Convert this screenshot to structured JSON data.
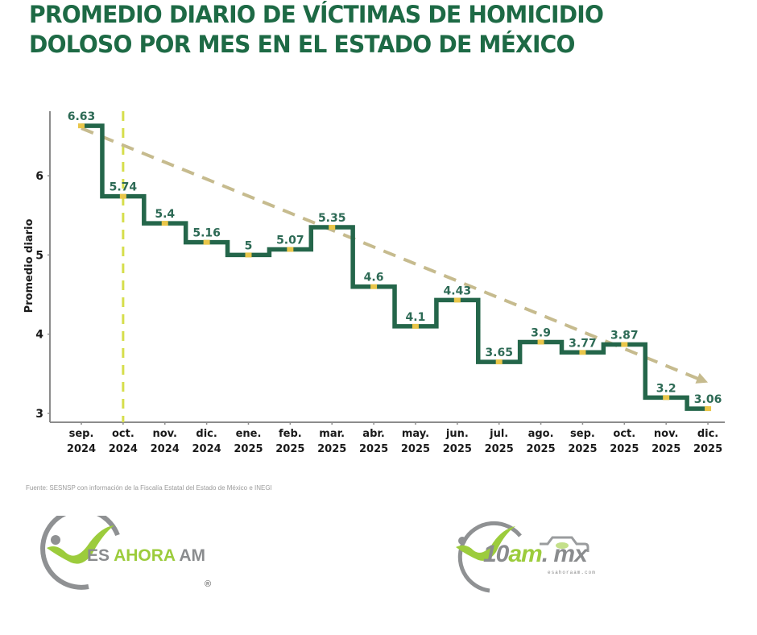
{
  "title": {
    "line1": "PROMEDIO DIARIO DE VÍCTIMAS DE HOMICIDIO",
    "line2": "DOLOSO POR MES EN EL ESTADO DE MÉXICO"
  },
  "source": "Fuente: SESNSP con información de la Fiscalía Estatal del Estado de México e INEGI",
  "logos": {
    "left": {
      "part1": "ES ",
      "part2": "AHORA",
      "part3": " AM",
      "registered": "®"
    },
    "right": {
      "part1": "10",
      "part2": "am",
      "part3": ". mx",
      "sub": "esahoraam.com"
    }
  },
  "colors": {
    "title": "#1d6a45",
    "step_line": "#24664a",
    "label": "#2d6a55",
    "marker": "#e9c64a",
    "trend": "#c6bb8e",
    "vline": "#d6de4c",
    "axis": "#8c8c8c",
    "tick_text": "#1a1a1a"
  },
  "chart_data": {
    "type": "line",
    "subtype": "step-mid",
    "title": "PROMEDIO DIARIO DE VÍCTIMAS DE HOMICIDIO DOLOSO POR MES EN EL ESTADO DE MÉXICO",
    "xlabel": "",
    "ylabel": "Promedio diario",
    "ylim": [
      2.9,
      6.8
    ],
    "yticks": [
      3,
      4,
      5,
      6
    ],
    "grid": false,
    "categories": [
      [
        "sep.",
        "2024"
      ],
      [
        "oct.",
        "2024"
      ],
      [
        "nov.",
        "2024"
      ],
      [
        "dic.",
        "2024"
      ],
      [
        "ene.",
        "2025"
      ],
      [
        "feb.",
        "2025"
      ],
      [
        "mar.",
        "2025"
      ],
      [
        "abr.",
        "2025"
      ],
      [
        "may.",
        "2025"
      ],
      [
        "jun.",
        "2025"
      ],
      [
        "jul.",
        "2025"
      ],
      [
        "ago.",
        "2025"
      ],
      [
        "sep.",
        "2025"
      ],
      [
        "oct.",
        "2025"
      ],
      [
        "nov.",
        "2025"
      ],
      [
        "dic.",
        "2025"
      ]
    ],
    "series": [
      {
        "name": "Promedio diario",
        "values": [
          6.63,
          5.74,
          5.4,
          5.16,
          5,
          5.07,
          5.35,
          4.6,
          4.1,
          4.43,
          3.65,
          3.9,
          3.77,
          3.87,
          3.2,
          3.06
        ],
        "labels": [
          "6.63",
          "5.74",
          "5.4",
          "5.16",
          "5",
          "5.07",
          "5.35",
          "4.6",
          "4.1",
          "4.43",
          "3.65",
          "3.9",
          "3.77",
          "3.87",
          "3.2",
          "3.06"
        ]
      }
    ],
    "annotations": [
      {
        "type": "vertical-dashed-line",
        "at_category": "oct. 2024"
      },
      {
        "type": "trend-arrow-dashed",
        "from": {
          "category_index": 0,
          "value": 6.6
        },
        "to": {
          "category_index": 15,
          "value": 3.39
        }
      }
    ],
    "legend": "none"
  }
}
